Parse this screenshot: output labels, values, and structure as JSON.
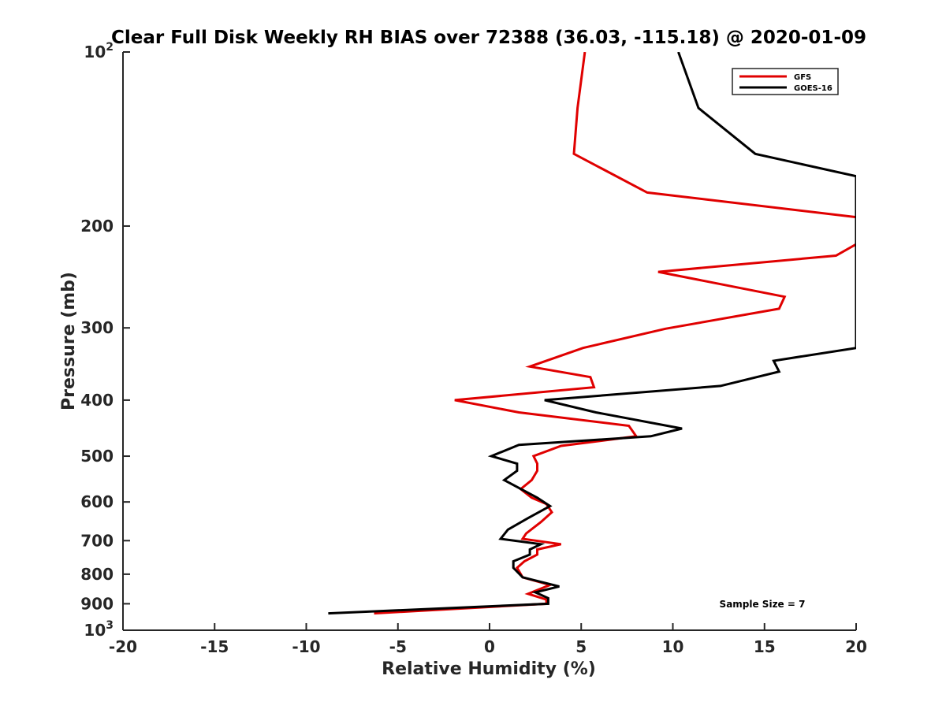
{
  "chart_data": {
    "type": "line",
    "title": "Clear Full Disk Weekly RH BIAS over 72388 (36.03, -115.18) @ 2020-01-09",
    "xlabel": "Relative Humidity (%)",
    "ylabel": "Pressure (mb)",
    "xlim": [
      -20,
      20
    ],
    "ylim": [
      100,
      1000
    ],
    "y_scale": "log",
    "y_reversed": true,
    "grid": false,
    "legend_position": "top-right",
    "x_ticks": [
      "-20",
      "-15",
      "-10",
      "-5",
      "0",
      "5",
      "10",
      "15",
      "20"
    ],
    "y_ticks": [
      {
        "value": 100,
        "base": "10",
        "exp": "2"
      },
      {
        "value": 200,
        "label": "200"
      },
      {
        "value": 300,
        "label": "300"
      },
      {
        "value": 400,
        "label": "400"
      },
      {
        "value": 500,
        "label": "500"
      },
      {
        "value": 600,
        "label": "600"
      },
      {
        "value": 700,
        "label": "700"
      },
      {
        "value": 800,
        "label": "800"
      },
      {
        "value": 900,
        "label": "900"
      },
      {
        "value": 1000,
        "base": "10",
        "exp": "3"
      }
    ],
    "series": [
      {
        "name": "GFS",
        "color": "#e00000",
        "points": [
          [
            5.2,
            100
          ],
          [
            4.8,
            125
          ],
          [
            4.6,
            150
          ],
          [
            8.6,
            175
          ],
          [
            20,
            193
          ],
          [
            20,
            215
          ],
          [
            18.9,
            225
          ],
          [
            9.2,
            240
          ],
          [
            16.1,
            265
          ],
          [
            15.8,
            278
          ],
          [
            9.6,
            301
          ],
          [
            5.1,
            325
          ],
          [
            2.2,
            350
          ],
          [
            5.5,
            365
          ],
          [
            5.7,
            380
          ],
          [
            -1.9,
            400
          ],
          [
            1.6,
            420
          ],
          [
            7.6,
            443
          ],
          [
            8.0,
            462
          ],
          [
            3.9,
            480
          ],
          [
            2.4,
            500
          ],
          [
            2.6,
            515
          ],
          [
            2.6,
            530
          ],
          [
            2.3,
            550
          ],
          [
            1.7,
            570
          ],
          [
            2.3,
            590
          ],
          [
            3.1,
            605
          ],
          [
            3.4,
            625
          ],
          [
            2.8,
            650
          ],
          [
            2.0,
            680
          ],
          [
            1.8,
            695
          ],
          [
            3.9,
            710
          ],
          [
            2.6,
            725
          ],
          [
            2.6,
            740
          ],
          [
            1.9,
            760
          ],
          [
            1.5,
            780
          ],
          [
            1.8,
            810
          ],
          [
            3.3,
            835
          ],
          [
            2.1,
            865
          ],
          [
            3.1,
            885
          ],
          [
            3.1,
            900
          ],
          [
            -6.3,
            935
          ]
        ]
      },
      {
        "name": "GOES-16",
        "color": "#000000",
        "points": [
          [
            10.3,
            100
          ],
          [
            11.4,
            125
          ],
          [
            14.5,
            150
          ],
          [
            20,
            164
          ],
          [
            20,
            325
          ],
          [
            15.5,
            342
          ],
          [
            15.8,
            357
          ],
          [
            12.6,
            378
          ],
          [
            3.0,
            400
          ],
          [
            5.8,
            420
          ],
          [
            10.5,
            448
          ],
          [
            8.8,
            462
          ],
          [
            1.6,
            478
          ],
          [
            0.1,
            500
          ],
          [
            1.5,
            515
          ],
          [
            1.5,
            530
          ],
          [
            0.8,
            550
          ],
          [
            2.6,
            590
          ],
          [
            3.3,
            610
          ],
          [
            2.1,
            640
          ],
          [
            1.0,
            670
          ],
          [
            0.6,
            695
          ],
          [
            2.8,
            710
          ],
          [
            2.2,
            725
          ],
          [
            2.2,
            740
          ],
          [
            1.3,
            760
          ],
          [
            1.3,
            780
          ],
          [
            1.8,
            810
          ],
          [
            3.8,
            840
          ],
          [
            2.5,
            860
          ],
          [
            3.2,
            880
          ],
          [
            3.2,
            900
          ],
          [
            -8.8,
            935
          ]
        ]
      }
    ],
    "legend": {
      "entries": [
        "GFS",
        "GOES-16"
      ]
    },
    "annotation": "Sample Size = 7"
  }
}
